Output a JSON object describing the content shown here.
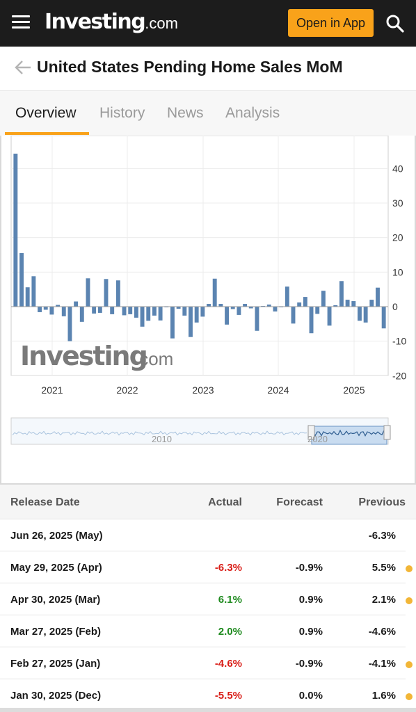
{
  "header": {
    "logo_main": "Investing",
    "logo_suffix": ".com",
    "open_app_label": "Open in App"
  },
  "page": {
    "title": "United States Pending Home Sales MoM"
  },
  "tabs": [
    {
      "label": "Overview",
      "active": true
    },
    {
      "label": "History",
      "active": false
    },
    {
      "label": "News",
      "active": false
    },
    {
      "label": "Analysis",
      "active": false
    }
  ],
  "chart": {
    "watermark_main": "Investing",
    "watermark_suffix": ".com",
    "navigator_labels": [
      "2010",
      "2020"
    ]
  },
  "chart_data": {
    "type": "bar",
    "x_tick_labels": [
      "2021",
      "2022",
      "2023",
      "2024",
      "2025"
    ],
    "y_tick_labels": [
      "-20",
      "-10",
      "0",
      "10",
      "20",
      "30",
      "40"
    ],
    "ylim": [
      -20,
      50
    ],
    "bar_color": "#5b84b1",
    "series": [
      {
        "values": [
          44.3,
          15.5,
          5.6,
          8.8,
          -1.6,
          -0.9,
          -2.3,
          0.5,
          -2.8,
          -10.0,
          1.5,
          -4.4,
          8.2,
          -2.0,
          -1.8,
          8.0,
          -2.2,
          7.6,
          -2.5,
          -2.2,
          -3.2,
          -5.8,
          -4.1,
          -2.6,
          -4.0,
          0.0,
          -9.2,
          -0.6,
          -2.6,
          -8.8,
          -4.6,
          -2.9,
          0.8,
          8.1,
          0.8,
          -5.2,
          -0.7,
          -2.4,
          0.8,
          -0.5,
          -7.0,
          0.2,
          0.6,
          -1.4,
          0.0,
          5.8,
          -4.9,
          1.2,
          2.8,
          -7.7,
          -2.1,
          4.6,
          -5.5,
          0.4,
          7.4,
          2.0,
          1.6,
          -4.1,
          -4.6,
          2.0,
          5.5,
          -6.3
        ]
      }
    ]
  },
  "table": {
    "headers": [
      "Release Date",
      "Actual",
      "Forecast",
      "Previous"
    ],
    "rows": [
      {
        "date": "Jun 26, 2025 (May)",
        "actual": "",
        "actual_class": "",
        "forecast": "",
        "previous": "-6.3%",
        "dot": false
      },
      {
        "date": "May 29, 2025 (Apr)",
        "actual": "-6.3%",
        "actual_class": "neg",
        "forecast": "-0.9%",
        "previous": "5.5%",
        "dot": true
      },
      {
        "date": "Apr 30, 2025 (Mar)",
        "actual": "6.1%",
        "actual_class": "pos",
        "forecast": "0.9%",
        "previous": "2.1%",
        "dot": true
      },
      {
        "date": "Mar 27, 2025 (Feb)",
        "actual": "2.0%",
        "actual_class": "pos",
        "forecast": "0.9%",
        "previous": "-4.6%",
        "dot": false
      },
      {
        "date": "Feb 27, 2025 (Jan)",
        "actual": "-4.6%",
        "actual_class": "neg",
        "forecast": "-0.9%",
        "previous": "-4.1%",
        "dot": true
      },
      {
        "date": "Jan 30, 2025 (Dec)",
        "actual": "-5.5%",
        "actual_class": "neg",
        "forecast": "0.0%",
        "previous": "1.6%",
        "dot": true
      }
    ]
  },
  "colors": {
    "accent": "#f9a21a",
    "negative": "#d91e18",
    "positive": "#1e8a1e",
    "bar": "#5b84b1"
  },
  "icons": [
    "hamburger-icon",
    "search-icon",
    "back-arrow-icon"
  ]
}
